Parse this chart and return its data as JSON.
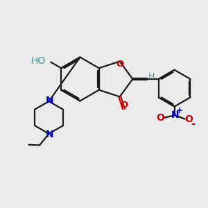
{
  "bg_color": "#ebebeb",
  "bond_color": "#1a1a1a",
  "oxygen_color": "#cc0000",
  "nitrogen_color": "#0000cc",
  "h_color": "#3a9999",
  "lw": 1.6,
  "fs": 9.5,
  "xlim": [
    0,
    10
  ],
  "ylim": [
    0,
    10
  ]
}
